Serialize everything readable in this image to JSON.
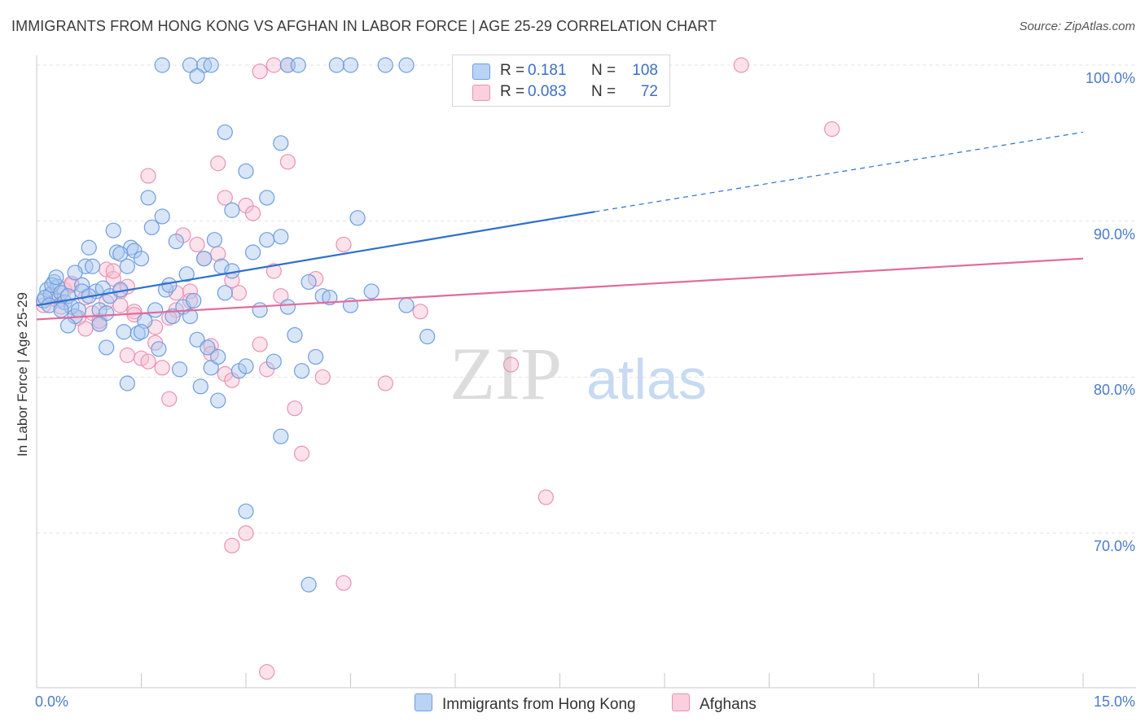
{
  "title": "IMMIGRANTS FROM HONG KONG VS AFGHAN IN LABOR FORCE | AGE 25-29 CORRELATION CHART",
  "source": "Source: ZipAtlas.com",
  "watermark": {
    "zip": "ZIP",
    "atlas": "atlas"
  },
  "stats": {
    "rows": [
      {
        "r_label": "R =",
        "r_value": "0.181",
        "n_label": "N =",
        "n_value": "108"
      },
      {
        "r_label": "R =",
        "r_value": "0.083",
        "n_label": "N =",
        "n_value": "72"
      }
    ]
  },
  "legend": {
    "items": [
      "Immigrants from Hong Kong",
      "Afghans"
    ]
  },
  "colors": {
    "blue_fill": "#a9c8f0",
    "blue_stroke": "#6f9de0",
    "blue_line": "#2e6fcf",
    "pink_fill": "#f7bfd2",
    "pink_stroke": "#ea92b3",
    "pink_line": "#e46a9a",
    "tick_text": "#4a7bc8",
    "grid": "#e2e2e2"
  },
  "chart_data": {
    "type": "scatter",
    "title": "IMMIGRANTS FROM HONG KONG VS AFGHAN IN LABOR FORCE | AGE 25-29 CORRELATION CHART",
    "xlabel": "",
    "ylabel": "In Labor Force | Age 25-29",
    "xlim": [
      0,
      15
    ],
    "ylim": [
      60.5,
      101
    ],
    "x_tick_labels": [
      "0.0%",
      "15.0%"
    ],
    "y_ticks": [
      100,
      90,
      80,
      70
    ],
    "y_tick_labels": [
      "100.0%",
      "90.0%",
      "80.0%",
      "70.0%"
    ],
    "grid": true,
    "legend_position": "bottom-center",
    "series": [
      {
        "name": "Immigrants from Hong Kong",
        "r": 0.181,
        "n": 108,
        "trend": {
          "x0": 0.0,
          "y0": 84.6,
          "x1": 8.0,
          "y1": 90.6,
          "dashed_to_x": 15.0,
          "dashed_to_y": 95.7
        },
        "points": [
          [
            0.1,
            84.9
          ],
          [
            0.15,
            85.6
          ],
          [
            0.2,
            85.3
          ],
          [
            0.25,
            86.1
          ],
          [
            0.3,
            85.8
          ],
          [
            0.12,
            85.1
          ],
          [
            0.18,
            84.6
          ],
          [
            0.22,
            85.9
          ],
          [
            0.28,
            86.4
          ],
          [
            0.35,
            85.4
          ],
          [
            0.4,
            84.8
          ],
          [
            0.45,
            85.2
          ],
          [
            0.5,
            84.5
          ],
          [
            0.55,
            83.9
          ],
          [
            0.6,
            84.3
          ],
          [
            0.65,
            85.9
          ],
          [
            0.7,
            87.1
          ],
          [
            0.75,
            88.3
          ],
          [
            0.8,
            87.1
          ],
          [
            0.85,
            85.5
          ],
          [
            0.9,
            84.3
          ],
          [
            0.95,
            85.7
          ],
          [
            1.0,
            84.1
          ],
          [
            1.05,
            85.2
          ],
          [
            1.1,
            89.4
          ],
          [
            1.15,
            88.0
          ],
          [
            1.2,
            85.6
          ],
          [
            1.25,
            82.9
          ],
          [
            1.3,
            87.1
          ],
          [
            1.35,
            88.3
          ],
          [
            1.4,
            88.1
          ],
          [
            1.45,
            82.8
          ],
          [
            1.5,
            87.6
          ],
          [
            1.55,
            83.6
          ],
          [
            1.6,
            91.5
          ],
          [
            1.65,
            89.6
          ],
          [
            1.7,
            84.3
          ],
          [
            1.75,
            81.8
          ],
          [
            1.8,
            90.3
          ],
          [
            1.85,
            85.6
          ],
          [
            1.9,
            85.9
          ],
          [
            1.95,
            83.9
          ],
          [
            2.0,
            88.7
          ],
          [
            2.05,
            80.5
          ],
          [
            2.1,
            84.5
          ],
          [
            2.15,
            86.6
          ],
          [
            2.2,
            83.9
          ],
          [
            2.25,
            84.9
          ],
          [
            2.3,
            82.4
          ],
          [
            2.35,
            79.4
          ],
          [
            2.4,
            87.6
          ],
          [
            2.45,
            81.9
          ],
          [
            2.5,
            80.6
          ],
          [
            2.55,
            88.8
          ],
          [
            2.6,
            81.3
          ],
          [
            2.65,
            87.1
          ],
          [
            2.7,
            85.4
          ],
          [
            2.8,
            90.7
          ],
          [
            2.9,
            80.4
          ],
          [
            3.0,
            80.7
          ],
          [
            3.1,
            88.0
          ],
          [
            3.2,
            84.3
          ],
          [
            3.3,
            88.8
          ],
          [
            3.4,
            81.0
          ],
          [
            3.5,
            95.0
          ],
          [
            3.6,
            84.5
          ],
          [
            3.7,
            82.7
          ],
          [
            3.8,
            80.4
          ],
          [
            4.0,
            81.3
          ],
          [
            4.1,
            85.2
          ],
          [
            4.2,
            85.1
          ],
          [
            4.5,
            84.6
          ],
          [
            4.8,
            85.5
          ],
          [
            5.3,
            84.6
          ],
          [
            5.6,
            82.6
          ],
          [
            1.8,
            100.0
          ],
          [
            2.2,
            100.0
          ],
          [
            2.4,
            100.0
          ],
          [
            2.3,
            99.3
          ],
          [
            2.5,
            100.0
          ],
          [
            3.6,
            100.0
          ],
          [
            3.75,
            100.0
          ],
          [
            4.3,
            100.0
          ],
          [
            4.5,
            100.0
          ],
          [
            5.0,
            100.0
          ],
          [
            5.3,
            100.0
          ],
          [
            6.1,
            100.0
          ],
          [
            2.7,
            95.7
          ],
          [
            3.0,
            93.2
          ],
          [
            3.3,
            91.5
          ],
          [
            3.5,
            89.0
          ],
          [
            3.9,
            86.1
          ],
          [
            4.6,
            90.2
          ],
          [
            3.5,
            76.2
          ],
          [
            3.0,
            71.4
          ],
          [
            3.9,
            66.7
          ],
          [
            0.35,
            84.3
          ],
          [
            0.55,
            86.7
          ],
          [
            0.65,
            85.5
          ],
          [
            0.75,
            85.2
          ],
          [
            1.0,
            81.9
          ],
          [
            0.45,
            83.3
          ],
          [
            1.3,
            79.6
          ],
          [
            2.6,
            78.5
          ],
          [
            1.5,
            82.9
          ],
          [
            0.9,
            83.4
          ],
          [
            1.2,
            87.9
          ],
          [
            2.8,
            86.8
          ]
        ]
      },
      {
        "name": "Afghans",
        "r": 0.083,
        "n": 72,
        "trend": {
          "x0": 0.0,
          "y0": 83.7,
          "x1": 15.0,
          "y1": 87.6
        },
        "points": [
          [
            0.1,
            84.6
          ],
          [
            0.2,
            85.2
          ],
          [
            0.3,
            84.9
          ],
          [
            0.4,
            85.6
          ],
          [
            0.5,
            85.9
          ],
          [
            0.6,
            83.8
          ],
          [
            0.7,
            85.1
          ],
          [
            0.8,
            84.1
          ],
          [
            0.9,
            83.4
          ],
          [
            1.0,
            86.9
          ],
          [
            1.1,
            86.3
          ],
          [
            1.2,
            84.6
          ],
          [
            1.3,
            81.4
          ],
          [
            1.4,
            84.2
          ],
          [
            1.5,
            81.2
          ],
          [
            1.6,
            81.0
          ],
          [
            1.7,
            83.2
          ],
          [
            1.8,
            80.6
          ],
          [
            1.9,
            78.6
          ],
          [
            2.0,
            85.4
          ],
          [
            2.1,
            89.1
          ],
          [
            2.2,
            85.5
          ],
          [
            2.3,
            88.5
          ],
          [
            2.4,
            87.6
          ],
          [
            2.5,
            82.0
          ],
          [
            2.6,
            87.9
          ],
          [
            2.7,
            80.2
          ],
          [
            2.8,
            86.2
          ],
          [
            2.9,
            85.4
          ],
          [
            3.0,
            91.0
          ],
          [
            3.1,
            90.5
          ],
          [
            3.2,
            82.1
          ],
          [
            3.3,
            80.5
          ],
          [
            3.4,
            86.8
          ],
          [
            3.5,
            85.2
          ],
          [
            3.6,
            93.8
          ],
          [
            3.7,
            78.0
          ],
          [
            3.8,
            75.1
          ],
          [
            4.0,
            86.3
          ],
          [
            4.1,
            80.0
          ],
          [
            4.4,
            88.5
          ],
          [
            5.0,
            79.6
          ],
          [
            5.5,
            84.2
          ],
          [
            6.8,
            80.8
          ],
          [
            7.3,
            72.3
          ],
          [
            10.1,
            100.0
          ],
          [
            11.4,
            95.9
          ],
          [
            1.6,
            92.9
          ],
          [
            2.6,
            93.7
          ],
          [
            2.7,
            91.5
          ],
          [
            3.4,
            100.0
          ],
          [
            3.6,
            100.0
          ],
          [
            3.2,
            99.6
          ],
          [
            2.8,
            69.2
          ],
          [
            3.0,
            70.0
          ],
          [
            4.4,
            66.8
          ],
          [
            3.3,
            61.1
          ],
          [
            0.35,
            84.5
          ],
          [
            0.5,
            86.0
          ],
          [
            0.9,
            83.6
          ],
          [
            1.1,
            86.8
          ],
          [
            1.2,
            85.5
          ],
          [
            1.4,
            84.0
          ],
          [
            1.7,
            82.2
          ],
          [
            2.0,
            84.3
          ],
          [
            2.2,
            84.9
          ],
          [
            2.5,
            81.5
          ],
          [
            2.8,
            79.8
          ],
          [
            1.9,
            83.8
          ],
          [
            1.3,
            85.8
          ],
          [
            0.7,
            83.1
          ],
          [
            1.0,
            84.8
          ]
        ]
      }
    ]
  }
}
